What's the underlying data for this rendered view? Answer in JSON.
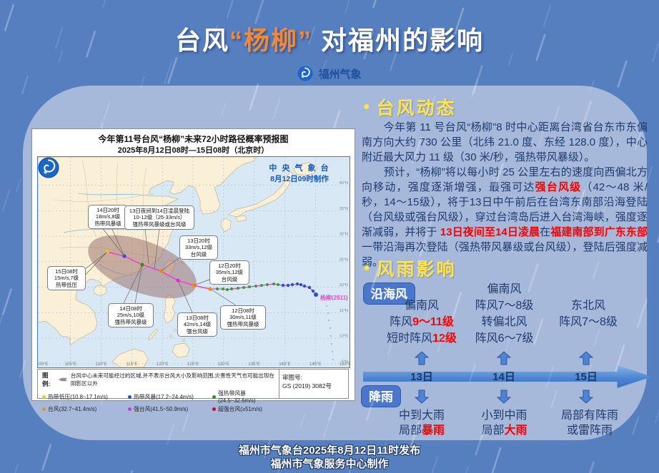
{
  "header": {
    "title_prefix": "台风",
    "title_highlight": "“杨柳”",
    "title_suffix": " 对福州的影响",
    "brand": "福州气象"
  },
  "map": {
    "title_line1": "今年第11号台风“杨柳”未来72小时路径概率预报图",
    "title_line2": "2025年8月12日08时—15日08时（北京时）",
    "source_line1": "中 央 气 象 台",
    "source_line2": "8月12日09时制作",
    "storm_label": "杨柳(2511)",
    "callouts": [
      {
        "l1": "15日08时",
        "l2": "15m/s,7级",
        "l3": "热带低压"
      },
      {
        "l1": "14日20时",
        "l2": "18m/s,8级",
        "l3": "热带风暴级"
      },
      {
        "l1": "13日夜间到14日凌晨登陆",
        "l2": "10-12级（25-33m/s）",
        "l3": "强热带风暴级或台风级"
      },
      {
        "l1": "13日20时",
        "l2": "33m/s,12级",
        "l3": "台风级"
      },
      {
        "l1": "12日20时",
        "l2": "35m/s,12级",
        "l3": "台风级"
      },
      {
        "l1": "14日08时",
        "l2": "25m/s,10级",
        "l3": "强热带风暴级"
      },
      {
        "l1": "13日08时",
        "l2": "42m/s,14级",
        "l3": "强台风级"
      },
      {
        "l1": "12日08时",
        "l2": "30m/s,11级",
        "l3": "强热带风暴级"
      }
    ],
    "legend": {
      "label": "图例:",
      "cone_note": "台风中心未来可能经过的区域,并不表示台风大小及影响范围,灾害性天气也可能出现在阴影区以外",
      "items": [
        {
          "label": "热带低压(10.8~17.1m/s)",
          "color": "#F7C51E"
        },
        {
          "label": "热带风暴(17.2~24.4m/s)",
          "color": "#2A52CC"
        },
        {
          "label": "强热带风暴(24.5~32.6m/s)",
          "color": "#1E9A1E"
        },
        {
          "label": "台风(32.7~41.4m/s)",
          "color": "#FF8C00"
        },
        {
          "label": "强台风(41.5~50.9m/s)",
          "color": "#EE28D8"
        },
        {
          "label": "超强台风(≥51m/s)",
          "color": "#E60000"
        }
      ],
      "review_label": "审图号:",
      "review_number": "GS (2019) 3082号"
    },
    "lon_labels": [
      "100°E",
      "105°E",
      "110°E",
      "115°E",
      "120°E",
      "125°E",
      "130°E",
      "135°E",
      "140°E",
      "145°E",
      "150°E"
    ],
    "lat_labels": [
      "40°N",
      "35°N",
      "30°N",
      "25°N",
      "20°N",
      "15°N",
      "10°N",
      "5°N"
    ]
  },
  "dynamics": {
    "heading": "台风动态",
    "p1": "今年第 11 号台风“杨柳”8 时中心距离台湾省台东市东偏南方向大约 730 公里（北纬 21.0 度、东经 128.0 度），中心附近最大风力 11 级（30 米/秒，强热带风暴级）。",
    "p2_parts": [
      {
        "t": "预计，“杨柳”将以每小时 25 公里左右的速度向西偏北方向移动，强度逐渐增强，最强可达"
      },
      {
        "t": "强台风级",
        "red": true
      },
      {
        "t": "（42～48 米/秒，14～15级），将于13日中午前后在台湾东南部沿海登陆（台风级或强台风级），穿过台湾岛后进入台湾海峡，强度逐渐减弱，并将于 "
      },
      {
        "t": "13日夜间至14日凌晨",
        "red": true
      },
      {
        "t": "在"
      },
      {
        "t": "福建南部到广东东部",
        "red": true
      },
      {
        "t": "一带沿海再次登陆（强热带风暴级或台风级），登陆后强度减弱。"
      }
    ]
  },
  "impact": {
    "heading": "风雨影响"
  },
  "wind": {
    "badge": "沿海风",
    "columns": [
      {
        "lines": [
          [
            {
              "t": "偏南风"
            }
          ],
          [
            {
              "t": "阵风"
            },
            {
              "t": "9～11级",
              "red": true
            }
          ],
          [
            {
              "t": "短时阵风"
            },
            {
              "t": "12级",
              "red": true
            }
          ]
        ]
      },
      {
        "lines": [
          [
            {
              "t": "偏南风"
            }
          ],
          [
            {
              "t": "阵风7～8级"
            }
          ],
          [
            {
              "t": "转偏北风"
            }
          ],
          [
            {
              "t": "阵风6～7级"
            }
          ]
        ]
      },
      {
        "lines": [
          [
            {
              "t": "东北风"
            }
          ],
          [
            {
              "t": "阵风7～8级"
            }
          ]
        ]
      }
    ]
  },
  "timeline": {
    "dates": [
      "13日",
      "14日",
      "15日"
    ]
  },
  "rain": {
    "badge": "降雨",
    "columns": [
      {
        "lines": [
          [
            {
              "t": "中到大雨"
            }
          ],
          [
            {
              "t": "局部"
            },
            {
              "t": "暴雨",
              "red": true
            }
          ]
        ]
      },
      {
        "lines": [
          [
            {
              "t": "小到中雨"
            }
          ],
          [
            {
              "t": "局部"
            },
            {
              "t": "大雨",
              "red": true
            }
          ]
        ]
      },
      {
        "lines": [
          [
            {
              "t": "局部有阵雨"
            }
          ],
          [
            {
              "t": "或雷阵雨"
            }
          ]
        ]
      }
    ]
  },
  "footer": {
    "line1": "福州市气象台2025年8月12日11时发布",
    "line2": "福州市气象服务中心制作"
  },
  "colors": {
    "background": "#567FC0",
    "panel": "#A7B9DB",
    "accent_orange": "#ED8A3C",
    "heading_yellow": "#FFE34D",
    "emphasis_red": "#FF0000",
    "text_navy": "#1E3B6E",
    "badge_blue": "#4A77CC",
    "track_magenta": "#F23FD0"
  },
  "icons": {
    "brand_logo": "weather-swirl-icon",
    "cma_logo": "cma-swirl-icon",
    "cone": "forecast-cone-icon",
    "up_arrow": "up-arrow-icon",
    "down_arrow": "down-arrow-icon",
    "timeline_arrow": "right-arrow-bar-icon"
  }
}
